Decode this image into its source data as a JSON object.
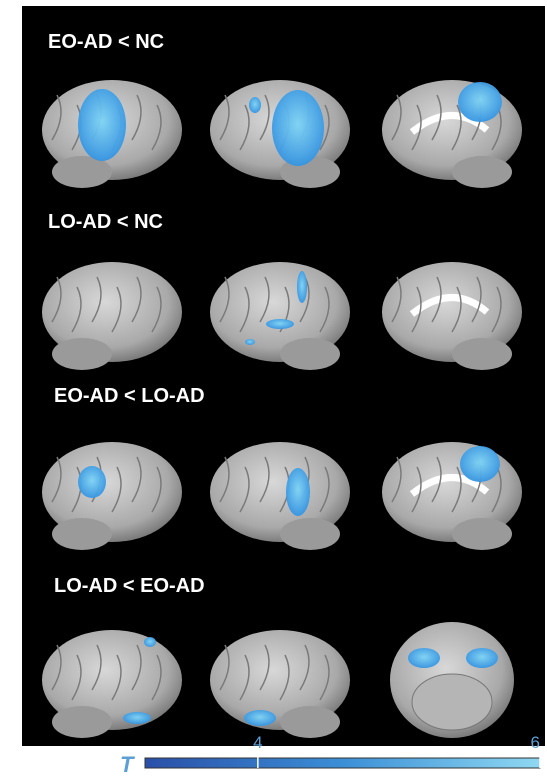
{
  "panels": [
    {
      "title": "EO-AD < NC"
    },
    {
      "title": "LO-AD < NC"
    },
    {
      "title": "EO-AD < LO-AD"
    },
    {
      "title": "LO-AD < EO-AD"
    }
  ],
  "colorbar": {
    "label": "T",
    "lim": [
      3.2,
      6
    ],
    "ticks": [
      4,
      6
    ]
  }
}
